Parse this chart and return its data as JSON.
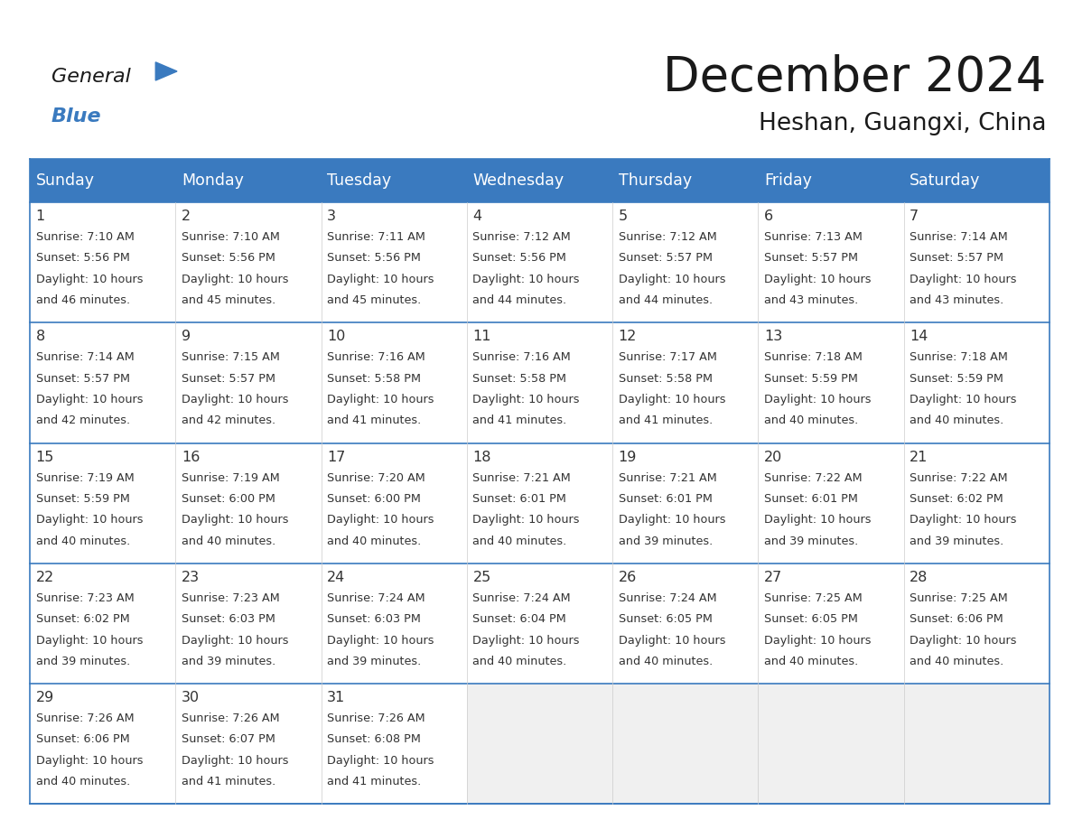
{
  "title": "December 2024",
  "subtitle": "Heshan, Guangxi, China",
  "header_color": "#3a7abf",
  "header_text_color": "#ffffff",
  "cell_text_color": "#333333",
  "day_num_color": "#333333",
  "border_color": "#3a7abf",
  "bg_color": "#ffffff",
  "empty_cell_bg": "#f0f0f0",
  "days_of_week": [
    "Sunday",
    "Monday",
    "Tuesday",
    "Wednesday",
    "Thursday",
    "Friday",
    "Saturday"
  ],
  "weeks": [
    [
      {
        "day": 1,
        "sunrise": "7:10 AM",
        "sunset": "5:56 PM",
        "daylight_min": "46 minutes."
      },
      {
        "day": 2,
        "sunrise": "7:10 AM",
        "sunset": "5:56 PM",
        "daylight_min": "45 minutes."
      },
      {
        "day": 3,
        "sunrise": "7:11 AM",
        "sunset": "5:56 PM",
        "daylight_min": "45 minutes."
      },
      {
        "day": 4,
        "sunrise": "7:12 AM",
        "sunset": "5:56 PM",
        "daylight_min": "44 minutes."
      },
      {
        "day": 5,
        "sunrise": "7:12 AM",
        "sunset": "5:57 PM",
        "daylight_min": "44 minutes."
      },
      {
        "day": 6,
        "sunrise": "7:13 AM",
        "sunset": "5:57 PM",
        "daylight_min": "43 minutes."
      },
      {
        "day": 7,
        "sunrise": "7:14 AM",
        "sunset": "5:57 PM",
        "daylight_min": "43 minutes."
      }
    ],
    [
      {
        "day": 8,
        "sunrise": "7:14 AM",
        "sunset": "5:57 PM",
        "daylight_min": "42 minutes."
      },
      {
        "day": 9,
        "sunrise": "7:15 AM",
        "sunset": "5:57 PM",
        "daylight_min": "42 minutes."
      },
      {
        "day": 10,
        "sunrise": "7:16 AM",
        "sunset": "5:58 PM",
        "daylight_min": "41 minutes."
      },
      {
        "day": 11,
        "sunrise": "7:16 AM",
        "sunset": "5:58 PM",
        "daylight_min": "41 minutes."
      },
      {
        "day": 12,
        "sunrise": "7:17 AM",
        "sunset": "5:58 PM",
        "daylight_min": "41 minutes."
      },
      {
        "day": 13,
        "sunrise": "7:18 AM",
        "sunset": "5:59 PM",
        "daylight_min": "40 minutes."
      },
      {
        "day": 14,
        "sunrise": "7:18 AM",
        "sunset": "5:59 PM",
        "daylight_min": "40 minutes."
      }
    ],
    [
      {
        "day": 15,
        "sunrise": "7:19 AM",
        "sunset": "5:59 PM",
        "daylight_min": "40 minutes."
      },
      {
        "day": 16,
        "sunrise": "7:19 AM",
        "sunset": "6:00 PM",
        "daylight_min": "40 minutes."
      },
      {
        "day": 17,
        "sunrise": "7:20 AM",
        "sunset": "6:00 PM",
        "daylight_min": "40 minutes."
      },
      {
        "day": 18,
        "sunrise": "7:21 AM",
        "sunset": "6:01 PM",
        "daylight_min": "40 minutes."
      },
      {
        "day": 19,
        "sunrise": "7:21 AM",
        "sunset": "6:01 PM",
        "daylight_min": "39 minutes."
      },
      {
        "day": 20,
        "sunrise": "7:22 AM",
        "sunset": "6:01 PM",
        "daylight_min": "39 minutes."
      },
      {
        "day": 21,
        "sunrise": "7:22 AM",
        "sunset": "6:02 PM",
        "daylight_min": "39 minutes."
      }
    ],
    [
      {
        "day": 22,
        "sunrise": "7:23 AM",
        "sunset": "6:02 PM",
        "daylight_min": "39 minutes."
      },
      {
        "day": 23,
        "sunrise": "7:23 AM",
        "sunset": "6:03 PM",
        "daylight_min": "39 minutes."
      },
      {
        "day": 24,
        "sunrise": "7:24 AM",
        "sunset": "6:03 PM",
        "daylight_min": "39 minutes."
      },
      {
        "day": 25,
        "sunrise": "7:24 AM",
        "sunset": "6:04 PM",
        "daylight_min": "40 minutes."
      },
      {
        "day": 26,
        "sunrise": "7:24 AM",
        "sunset": "6:05 PM",
        "daylight_min": "40 minutes."
      },
      {
        "day": 27,
        "sunrise": "7:25 AM",
        "sunset": "6:05 PM",
        "daylight_min": "40 minutes."
      },
      {
        "day": 28,
        "sunrise": "7:25 AM",
        "sunset": "6:06 PM",
        "daylight_min": "40 minutes."
      }
    ],
    [
      {
        "day": 29,
        "sunrise": "7:26 AM",
        "sunset": "6:06 PM",
        "daylight_min": "40 minutes."
      },
      {
        "day": 30,
        "sunrise": "7:26 AM",
        "sunset": "6:07 PM",
        "daylight_min": "41 minutes."
      },
      {
        "day": 31,
        "sunrise": "7:26 AM",
        "sunset": "6:08 PM",
        "daylight_min": "41 minutes."
      },
      null,
      null,
      null,
      null
    ]
  ],
  "logo_general_color": "#1a1a1a",
  "logo_blue_color": "#3a7abf",
  "title_fontsize": 38,
  "subtitle_fontsize": 19,
  "header_fontsize": 12.5,
  "day_num_fontsize": 11.5,
  "cell_fontsize": 9.2
}
